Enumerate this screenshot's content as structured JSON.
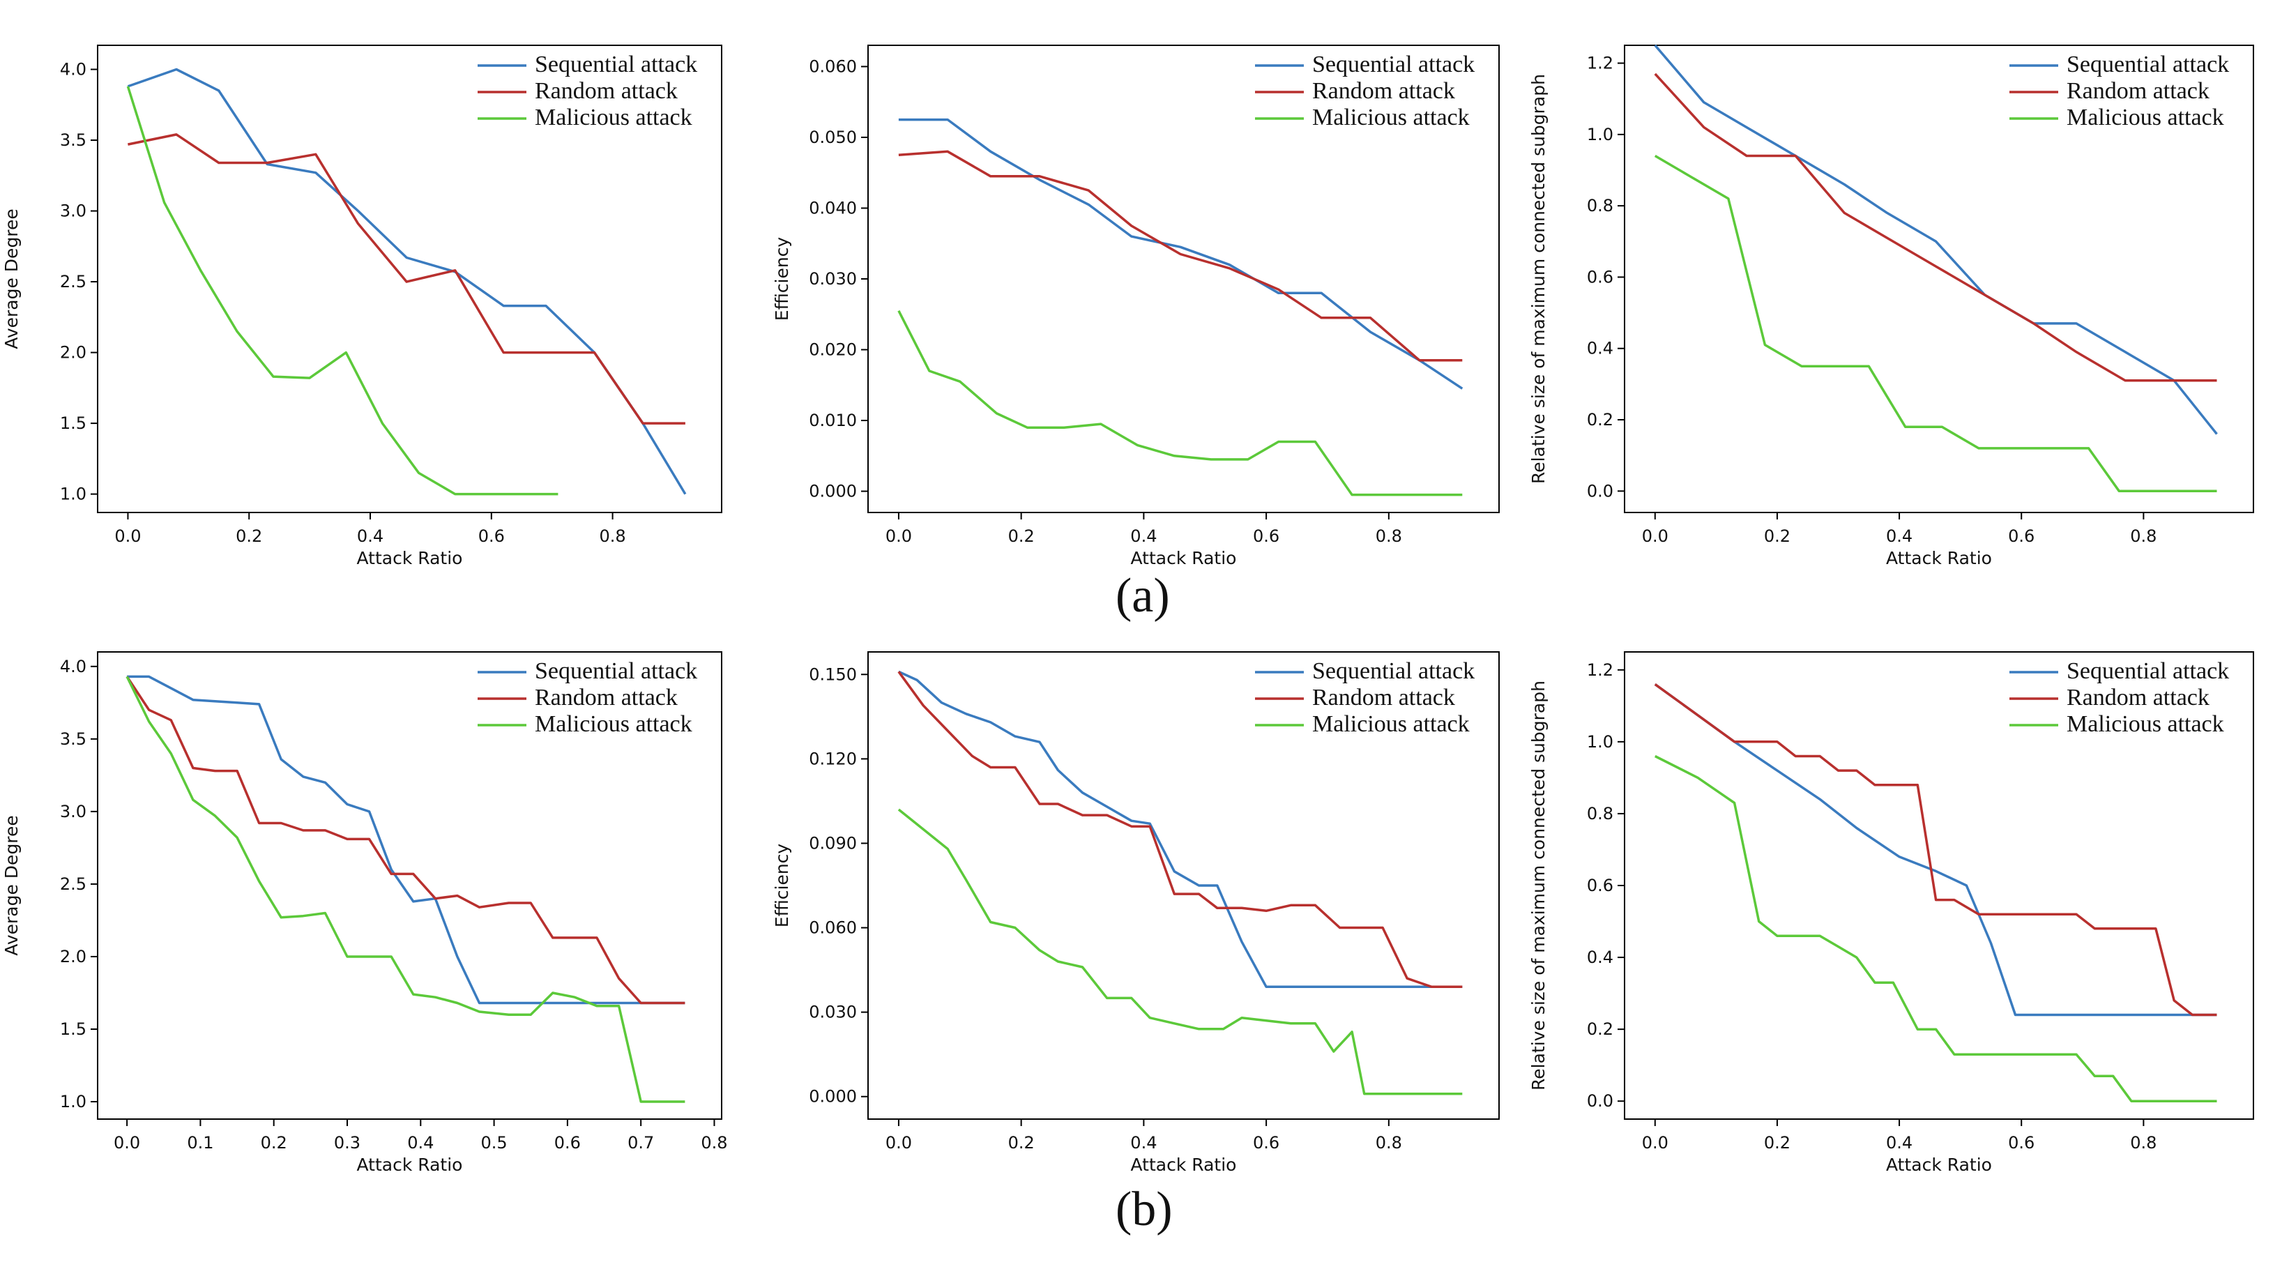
{
  "colors": {
    "sequential": "#3a7bbf",
    "random": "#b8302e",
    "malicious": "#5cc93a",
    "axis": "#000000",
    "text": "#111111"
  },
  "legend_labels": [
    "Sequential attack",
    "Random attack",
    "Malicious attack"
  ],
  "panel_labels": [
    "(a)",
    "(b)"
  ],
  "chart_data": [
    {
      "type": "line",
      "xlabel": "Attack Ratio",
      "ylabel": "Average Degree",
      "xlim": [
        -0.05,
        0.98
      ],
      "ylim": [
        0.87,
        4.17
      ],
      "xticks": [
        0.0,
        0.2,
        0.4,
        0.6,
        0.8
      ],
      "xtick_labels": [
        "0.0",
        "0.2",
        "0.4",
        "0.6",
        "0.8"
      ],
      "yticks": [
        1.0,
        1.5,
        2.0,
        2.5,
        3.0,
        3.5,
        4.0
      ],
      "ytick_labels": [
        "1.0",
        "1.5",
        "2.0",
        "2.5",
        "3.0",
        "3.5",
        "4.0"
      ],
      "legend": "top-right",
      "series": [
        {
          "name": "Sequential attack",
          "x": [
            0.0,
            0.08,
            0.15,
            0.23,
            0.31,
            0.38,
            0.46,
            0.54,
            0.62,
            0.69,
            0.77,
            0.85,
            0.92
          ],
          "y": [
            3.88,
            4.0,
            3.85,
            3.33,
            3.27,
            3.0,
            2.67,
            2.57,
            2.33,
            2.33,
            2.0,
            1.5,
            1.0
          ]
        },
        {
          "name": "Random attack",
          "x": [
            0.0,
            0.08,
            0.15,
            0.23,
            0.31,
            0.38,
            0.46,
            0.54,
            0.62,
            0.69,
            0.77,
            0.85,
            0.92
          ],
          "y": [
            3.47,
            3.54,
            3.34,
            3.34,
            3.4,
            2.91,
            2.5,
            2.58,
            2.0,
            2.0,
            2.0,
            1.5,
            1.5
          ]
        },
        {
          "name": "Malicious attack",
          "x": [
            0.0,
            0.06,
            0.12,
            0.18,
            0.24,
            0.3,
            0.36,
            0.42,
            0.48,
            0.54,
            0.6,
            0.66,
            0.71
          ],
          "y": [
            3.88,
            3.06,
            2.58,
            2.15,
            1.83,
            1.82,
            2.0,
            1.5,
            1.15,
            1.0,
            1.0,
            1.0,
            1.0
          ]
        }
      ]
    },
    {
      "type": "line",
      "xlabel": "Attack Ratio",
      "ylabel": "Efficiency",
      "xlim": [
        -0.05,
        0.98
      ],
      "ylim": [
        -0.003,
        0.063
      ],
      "xticks": [
        0.0,
        0.2,
        0.4,
        0.6,
        0.8
      ],
      "xtick_labels": [
        "0.0",
        "0.2",
        "0.4",
        "0.6",
        "0.8"
      ],
      "yticks": [
        0.0,
        0.01,
        0.02,
        0.03,
        0.04,
        0.05,
        0.06
      ],
      "ytick_labels": [
        "0.000",
        "0.010",
        "0.020",
        "0.030",
        "0.040",
        "0.050",
        "0.060"
      ],
      "legend": "top-right",
      "series": [
        {
          "name": "Sequential attack",
          "x": [
            0.0,
            0.08,
            0.15,
            0.23,
            0.31,
            0.38,
            0.46,
            0.54,
            0.62,
            0.69,
            0.77,
            0.85,
            0.92
          ],
          "y": [
            0.0525,
            0.0525,
            0.048,
            0.044,
            0.0405,
            0.036,
            0.0345,
            0.032,
            0.028,
            0.028,
            0.0225,
            0.0185,
            0.0145
          ]
        },
        {
          "name": "Random attack",
          "x": [
            0.0,
            0.08,
            0.15,
            0.23,
            0.31,
            0.38,
            0.46,
            0.54,
            0.62,
            0.69,
            0.77,
            0.85,
            0.92
          ],
          "y": [
            0.0475,
            0.048,
            0.0445,
            0.0445,
            0.0425,
            0.0375,
            0.0335,
            0.0315,
            0.0285,
            0.0245,
            0.0245,
            0.0185,
            0.0185
          ]
        },
        {
          "name": "Malicious attack",
          "x": [
            0.0,
            0.05,
            0.1,
            0.16,
            0.21,
            0.27,
            0.33,
            0.39,
            0.45,
            0.51,
            0.57,
            0.62,
            0.68,
            0.74,
            0.8,
            0.86,
            0.92
          ],
          "y": [
            0.0255,
            0.017,
            0.0155,
            0.011,
            0.009,
            0.009,
            0.0095,
            0.0065,
            0.005,
            0.0045,
            0.0045,
            0.007,
            0.007,
            -0.0005,
            -0.0005,
            -0.0005,
            -0.0005
          ]
        }
      ]
    },
    {
      "type": "line",
      "xlabel": "Attack Ratio",
      "ylabel": "Relative size of maximum connected subgraph",
      "xlim": [
        -0.05,
        0.98
      ],
      "ylim": [
        -0.06,
        1.25
      ],
      "xticks": [
        0.0,
        0.2,
        0.4,
        0.6,
        0.8
      ],
      "xtick_labels": [
        "0.0",
        "0.2",
        "0.4",
        "0.6",
        "0.8"
      ],
      "yticks": [
        0.0,
        0.2,
        0.4,
        0.6,
        0.8,
        1.0,
        1.2
      ],
      "ytick_labels": [
        "0.0",
        "0.2",
        "0.4",
        "0.6",
        "0.8",
        "1.0",
        "1.2"
      ],
      "legend": "top-right",
      "series": [
        {
          "name": "Sequential attack",
          "x": [
            0.0,
            0.08,
            0.15,
            0.23,
            0.31,
            0.38,
            0.46,
            0.54,
            0.62,
            0.69,
            0.77,
            0.85,
            0.92
          ],
          "y": [
            1.25,
            1.09,
            1.02,
            0.94,
            0.86,
            0.78,
            0.7,
            0.55,
            0.47,
            0.47,
            0.39,
            0.31,
            0.16
          ]
        },
        {
          "name": "Random attack",
          "x": [
            0.0,
            0.08,
            0.15,
            0.23,
            0.31,
            0.38,
            0.46,
            0.54,
            0.62,
            0.69,
            0.77,
            0.85,
            0.92
          ],
          "y": [
            1.17,
            1.02,
            0.94,
            0.94,
            0.78,
            0.71,
            0.63,
            0.55,
            0.47,
            0.39,
            0.31,
            0.31,
            0.31
          ]
        },
        {
          "name": "Malicious attack",
          "x": [
            0.0,
            0.06,
            0.12,
            0.18,
            0.24,
            0.29,
            0.35,
            0.41,
            0.47,
            0.53,
            0.59,
            0.65,
            0.71,
            0.76,
            0.82,
            0.88,
            0.92
          ],
          "y": [
            0.94,
            0.88,
            0.82,
            0.41,
            0.35,
            0.35,
            0.35,
            0.18,
            0.18,
            0.12,
            0.12,
            0.12,
            0.12,
            0.0,
            0.0,
            0.0,
            0.0
          ]
        }
      ]
    },
    {
      "type": "line",
      "xlabel": "Attack Ratio",
      "ylabel": "Average Degree",
      "xlim": [
        -0.04,
        0.81
      ],
      "ylim": [
        0.88,
        4.1
      ],
      "xticks": [
        0.0,
        0.1,
        0.2,
        0.3,
        0.4,
        0.5,
        0.6,
        0.7,
        0.8
      ],
      "xtick_labels": [
        "0.0",
        "0.1",
        "0.2",
        "0.3",
        "0.4",
        "0.5",
        "0.6",
        "0.7",
        "0.8"
      ],
      "yticks": [
        1.0,
        1.5,
        2.0,
        2.5,
        3.0,
        3.5,
        4.0
      ],
      "ytick_labels": [
        "1.0",
        "1.5",
        "2.0",
        "2.5",
        "3.0",
        "3.5",
        "4.0"
      ],
      "legend": "top-right",
      "series": [
        {
          "name": "Sequential attack",
          "x": [
            0.0,
            0.03,
            0.09,
            0.12,
            0.15,
            0.18,
            0.21,
            0.24,
            0.27,
            0.3,
            0.33,
            0.36,
            0.39,
            0.42,
            0.45,
            0.48,
            0.52,
            0.55,
            0.58,
            0.61,
            0.64,
            0.67,
            0.7,
            0.73,
            0.76
          ],
          "y": [
            3.93,
            3.93,
            3.77,
            3.76,
            3.75,
            3.74,
            3.36,
            3.24,
            3.2,
            3.05,
            3.0,
            2.6,
            2.38,
            2.4,
            2.0,
            1.68,
            1.68,
            1.68,
            1.68,
            1.68,
            1.68,
            1.68,
            1.68,
            1.68,
            1.68
          ]
        },
        {
          "name": "Random attack",
          "x": [
            0.0,
            0.03,
            0.06,
            0.09,
            0.12,
            0.15,
            0.18,
            0.21,
            0.24,
            0.27,
            0.3,
            0.33,
            0.36,
            0.39,
            0.42,
            0.45,
            0.48,
            0.52,
            0.55,
            0.58,
            0.61,
            0.64,
            0.67,
            0.7,
            0.73,
            0.76
          ],
          "y": [
            3.93,
            3.7,
            3.63,
            3.3,
            3.28,
            3.28,
            2.92,
            2.92,
            2.87,
            2.87,
            2.81,
            2.81,
            2.57,
            2.57,
            2.4,
            2.42,
            2.34,
            2.37,
            2.37,
            2.13,
            2.13,
            2.13,
            1.85,
            1.68,
            1.68,
            1.68
          ]
        },
        {
          "name": "Malicious attack",
          "x": [
            0.0,
            0.03,
            0.06,
            0.09,
            0.12,
            0.15,
            0.18,
            0.21,
            0.24,
            0.27,
            0.3,
            0.33,
            0.36,
            0.39,
            0.42,
            0.45,
            0.48,
            0.52,
            0.55,
            0.58,
            0.61,
            0.64,
            0.67,
            0.7,
            0.73,
            0.76
          ],
          "y": [
            3.93,
            3.62,
            3.4,
            3.08,
            2.97,
            2.82,
            2.52,
            2.27,
            2.28,
            2.3,
            2.0,
            2.0,
            2.0,
            1.74,
            1.72,
            1.68,
            1.62,
            1.6,
            1.6,
            1.75,
            1.72,
            1.66,
            1.66,
            1.0,
            1.0,
            1.0
          ]
        }
      ]
    },
    {
      "type": "line",
      "xlabel": "Attack Ratio",
      "ylabel": "Efficiency",
      "xlim": [
        -0.05,
        0.98
      ],
      "ylim": [
        -0.008,
        0.158
      ],
      "xticks": [
        0.0,
        0.2,
        0.4,
        0.6,
        0.8
      ],
      "xtick_labels": [
        "0.0",
        "0.2",
        "0.4",
        "0.6",
        "0.8"
      ],
      "yticks": [
        0.0,
        0.03,
        0.06,
        0.09,
        0.12,
        0.15
      ],
      "ytick_labels": [
        "0.000",
        "0.030",
        "0.060",
        "0.090",
        "0.120",
        "0.150"
      ],
      "legend": "top-right",
      "series": [
        {
          "name": "Sequential attack",
          "x": [
            0.0,
            0.03,
            0.07,
            0.11,
            0.15,
            0.19,
            0.23,
            0.26,
            0.3,
            0.34,
            0.38,
            0.41,
            0.45,
            0.49,
            0.52,
            0.56,
            0.6,
            0.64,
            0.68,
            0.72,
            0.75,
            0.79,
            0.83,
            0.87,
            0.92
          ],
          "y": [
            0.151,
            0.148,
            0.14,
            0.136,
            0.133,
            0.128,
            0.126,
            0.116,
            0.108,
            0.103,
            0.098,
            0.097,
            0.08,
            0.075,
            0.075,
            0.055,
            0.039,
            0.039,
            0.039,
            0.039,
            0.039,
            0.039,
            0.039,
            0.039,
            0.039
          ]
        },
        {
          "name": "Random attack",
          "x": [
            0.0,
            0.04,
            0.08,
            0.12,
            0.15,
            0.19,
            0.23,
            0.26,
            0.3,
            0.34,
            0.38,
            0.41,
            0.45,
            0.49,
            0.52,
            0.56,
            0.6,
            0.64,
            0.68,
            0.72,
            0.75,
            0.79,
            0.83,
            0.87,
            0.92
          ],
          "y": [
            0.151,
            0.139,
            0.13,
            0.121,
            0.117,
            0.117,
            0.104,
            0.104,
            0.1,
            0.1,
            0.096,
            0.096,
            0.072,
            0.072,
            0.067,
            0.067,
            0.066,
            0.068,
            0.068,
            0.06,
            0.06,
            0.06,
            0.042,
            0.039,
            0.039
          ]
        },
        {
          "name": "Malicious attack",
          "x": [
            0.0,
            0.04,
            0.08,
            0.11,
            0.15,
            0.19,
            0.23,
            0.26,
            0.3,
            0.34,
            0.38,
            0.41,
            0.45,
            0.49,
            0.53,
            0.56,
            0.6,
            0.64,
            0.68,
            0.71,
            0.74,
            0.76,
            0.8,
            0.84,
            0.88,
            0.92
          ],
          "y": [
            0.102,
            0.095,
            0.088,
            0.077,
            0.062,
            0.06,
            0.052,
            0.048,
            0.046,
            0.035,
            0.035,
            0.028,
            0.026,
            0.024,
            0.024,
            0.028,
            0.027,
            0.026,
            0.026,
            0.016,
            0.023,
            0.001,
            0.001,
            0.001,
            0.001,
            0.001
          ]
        }
      ]
    },
    {
      "type": "line",
      "xlabel": "Attack Ratio",
      "ylabel": "Relative size of maximum connected subgraph",
      "xlim": [
        -0.05,
        0.98
      ],
      "ylim": [
        -0.05,
        1.25
      ],
      "xticks": [
        0.0,
        0.2,
        0.4,
        0.6,
        0.8
      ],
      "xtick_labels": [
        "0.0",
        "0.2",
        "0.4",
        "0.6",
        "0.8"
      ],
      "yticks": [
        0.0,
        0.2,
        0.4,
        0.6,
        0.8,
        1.0,
        1.2
      ],
      "ytick_labels": [
        "0.0",
        "0.2",
        "0.4",
        "0.6",
        "0.8",
        "1.0",
        "1.2"
      ],
      "legend": "top-right",
      "series": [
        {
          "name": "Sequential attack",
          "x": [
            0.0,
            0.13,
            0.2,
            0.27,
            0.33,
            0.4,
            0.46,
            0.51,
            0.55,
            0.59,
            0.66,
            0.72,
            0.79,
            0.85,
            0.92
          ],
          "y": [
            1.16,
            1.0,
            0.92,
            0.84,
            0.76,
            0.68,
            0.64,
            0.6,
            0.44,
            0.24,
            0.24,
            0.24,
            0.24,
            0.24,
            0.24
          ]
        },
        {
          "name": "Random attack",
          "x": [
            0.0,
            0.13,
            0.17,
            0.2,
            0.23,
            0.27,
            0.3,
            0.33,
            0.36,
            0.4,
            0.43,
            0.46,
            0.49,
            0.53,
            0.56,
            0.59,
            0.62,
            0.66,
            0.69,
            0.72,
            0.75,
            0.79,
            0.82,
            0.85,
            0.88,
            0.92
          ],
          "y": [
            1.16,
            1.0,
            1.0,
            1.0,
            0.96,
            0.96,
            0.92,
            0.92,
            0.88,
            0.88,
            0.88,
            0.56,
            0.56,
            0.52,
            0.52,
            0.52,
            0.52,
            0.52,
            0.52,
            0.48,
            0.48,
            0.48,
            0.48,
            0.28,
            0.24,
            0.24
          ]
        },
        {
          "name": "Malicious attack",
          "x": [
            0.0,
            0.07,
            0.13,
            0.17,
            0.2,
            0.23,
            0.27,
            0.3,
            0.33,
            0.36,
            0.39,
            0.43,
            0.46,
            0.49,
            0.52,
            0.56,
            0.59,
            0.62,
            0.66,
            0.69,
            0.72,
            0.75,
            0.78,
            0.82,
            0.86,
            0.92
          ],
          "y": [
            0.96,
            0.9,
            0.83,
            0.5,
            0.46,
            0.46,
            0.46,
            0.43,
            0.4,
            0.33,
            0.33,
            0.2,
            0.2,
            0.13,
            0.13,
            0.13,
            0.13,
            0.13,
            0.13,
            0.13,
            0.07,
            0.07,
            0.0,
            0.0,
            0.0,
            0.0
          ]
        }
      ]
    }
  ]
}
